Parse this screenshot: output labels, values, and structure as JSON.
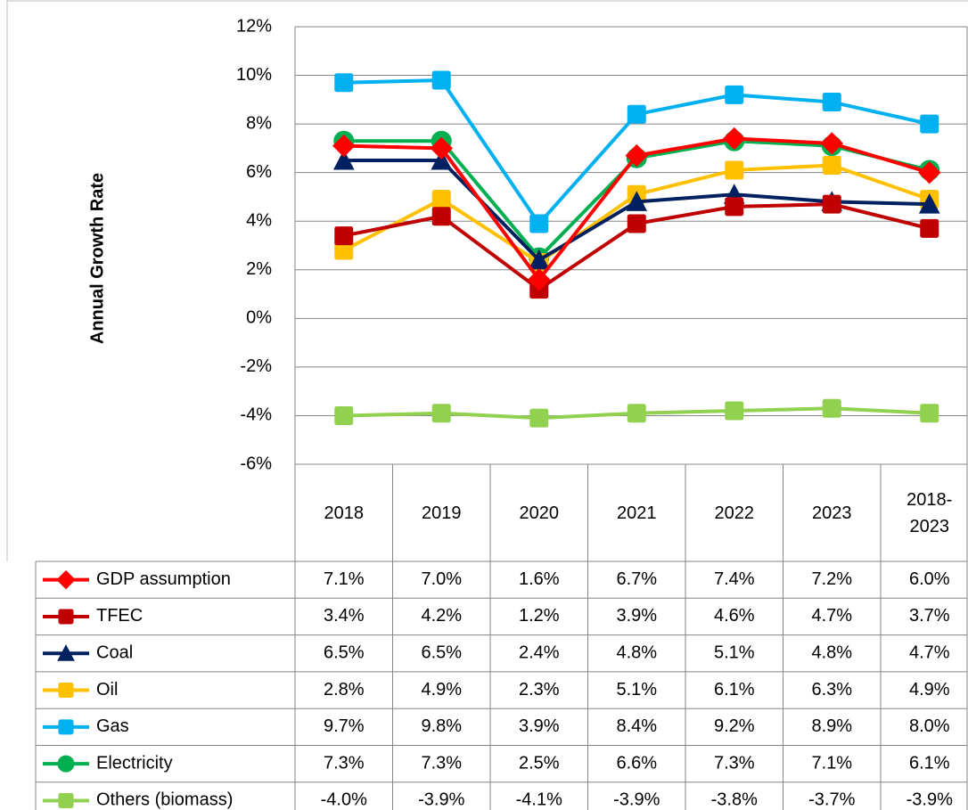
{
  "chart_data": {
    "type": "line",
    "y_axis_label": "Annual Growth Rate",
    "categories": [
      "2018",
      "2019",
      "2020",
      "2021",
      "2022",
      "2023",
      "2018-2023"
    ],
    "ylim": [
      -6,
      12
    ],
    "yticks": [
      {
        "value": -6,
        "label": "-6%"
      },
      {
        "value": -4,
        "label": "-4%"
      },
      {
        "value": -2,
        "label": "-2%"
      },
      {
        "value": 0,
        "label": "0%"
      },
      {
        "value": 2,
        "label": "2%"
      },
      {
        "value": 4,
        "label": "4%"
      },
      {
        "value": 6,
        "label": "6%"
      },
      {
        "value": 8,
        "label": "8%"
      },
      {
        "value": 10,
        "label": "10%"
      },
      {
        "value": 12,
        "label": "12%"
      }
    ],
    "grid": true,
    "series": [
      {
        "name": "GDP assumption",
        "color": "#ff0000",
        "marker": "diamond",
        "values": [
          7.1,
          7.0,
          1.6,
          6.7,
          7.4,
          7.2,
          6.0
        ],
        "value_labels": [
          "7.1%",
          "7.0%",
          "1.6%",
          "6.7%",
          "7.4%",
          "7.2%",
          "6.0%"
        ]
      },
      {
        "name": "TFEC",
        "color": "#c00000",
        "marker": "square",
        "values": [
          3.4,
          4.2,
          1.2,
          3.9,
          4.6,
          4.7,
          3.7
        ],
        "value_labels": [
          "3.4%",
          "4.2%",
          "1.2%",
          "3.9%",
          "4.6%",
          "4.7%",
          "3.7%"
        ]
      },
      {
        "name": "Coal",
        "color": "#002060",
        "marker": "triangle",
        "values": [
          6.5,
          6.5,
          2.4,
          4.8,
          5.1,
          4.8,
          4.7
        ],
        "value_labels": [
          "6.5%",
          "6.5%",
          "2.4%",
          "4.8%",
          "5.1%",
          "4.8%",
          "4.7%"
        ]
      },
      {
        "name": "Oil",
        "color": "#ffc000",
        "marker": "square",
        "values": [
          2.8,
          4.9,
          2.3,
          5.1,
          6.1,
          6.3,
          4.9
        ],
        "value_labels": [
          "2.8%",
          "4.9%",
          "2.3%",
          "5.1%",
          "6.1%",
          "6.3%",
          "4.9%"
        ]
      },
      {
        "name": "Gas",
        "color": "#00b0f0",
        "marker": "square",
        "values": [
          9.7,
          9.8,
          3.9,
          8.4,
          9.2,
          8.9,
          8.0
        ],
        "value_labels": [
          "9.7%",
          "9.8%",
          "3.9%",
          "8.4%",
          "9.2%",
          "8.9%",
          "8.0%"
        ]
      },
      {
        "name": "Electricity",
        "color": "#00b050",
        "marker": "circle",
        "values": [
          7.3,
          7.3,
          2.5,
          6.6,
          7.3,
          7.1,
          6.1
        ],
        "value_labels": [
          "7.3%",
          "7.3%",
          "2.5%",
          "6.6%",
          "7.3%",
          "7.1%",
          "6.1%"
        ]
      },
      {
        "name": "Others (biomass)",
        "color": "#92d050",
        "marker": "square",
        "values": [
          -4.0,
          -3.9,
          -4.1,
          -3.9,
          -3.8,
          -3.7,
          -3.9
        ],
        "value_labels": [
          "-4.0%",
          "-3.9%",
          "-4.1%",
          "-3.9%",
          "-3.8%",
          "-3.7%",
          "-3.9%"
        ]
      }
    ]
  }
}
